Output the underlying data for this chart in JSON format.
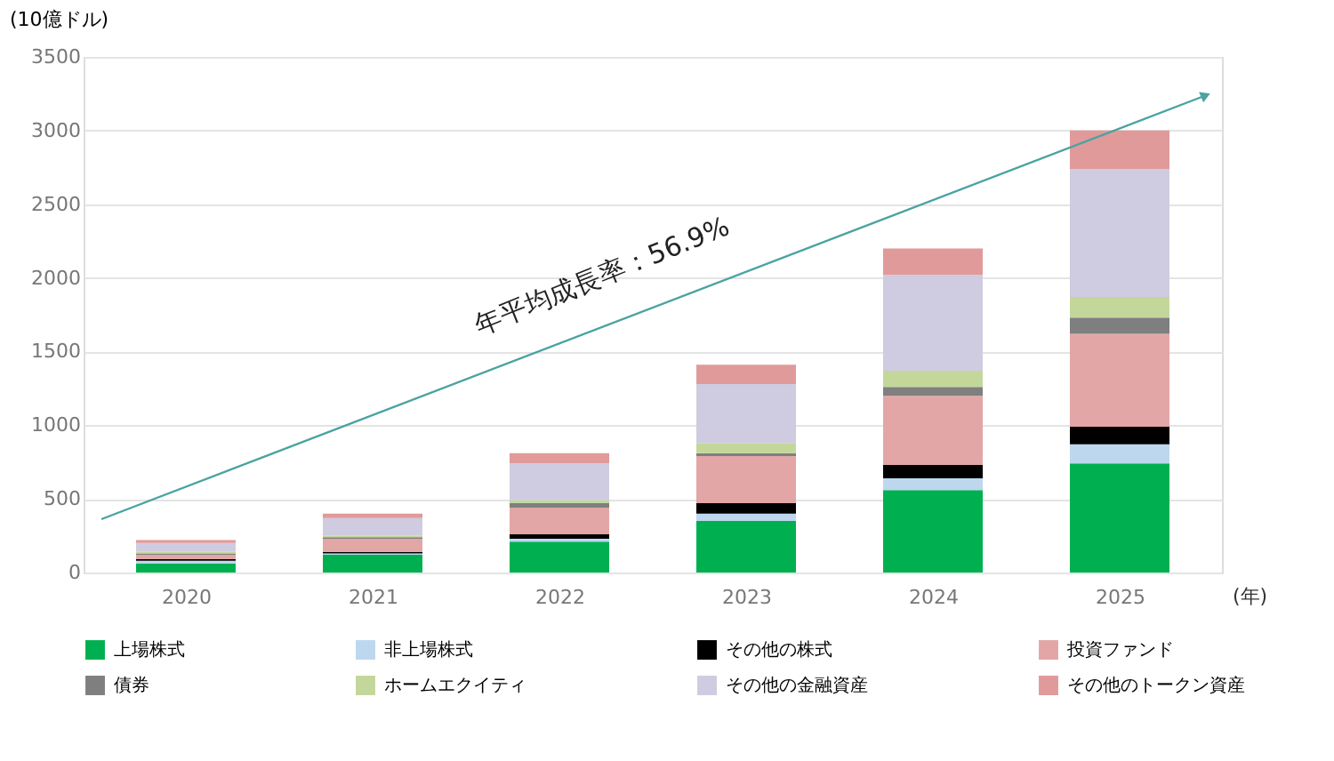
{
  "chart_data": {
    "type": "bar",
    "stacked": true,
    "xlabel": "(年)",
    "ylabel": "(10億ドル)",
    "categories": [
      "2020",
      "2021",
      "2022",
      "2023",
      "2024",
      "2025"
    ],
    "series": [
      {
        "name": "上場株式",
        "color": "#00b050",
        "values": [
          60,
          120,
          210,
          350,
          560,
          740
        ]
      },
      {
        "name": "非上場株式",
        "color": "#bdd7ee",
        "values": [
          20,
          10,
          20,
          50,
          80,
          130
        ]
      },
      {
        "name": "その他の株式",
        "color": "#000000",
        "values": [
          10,
          10,
          30,
          70,
          90,
          120
        ]
      },
      {
        "name": "投資ファンド",
        "color": "#e3a6a6",
        "values": [
          30,
          90,
          180,
          320,
          470,
          630
        ]
      },
      {
        "name": "債券",
        "color": "#7f7f7f",
        "values": [
          10,
          10,
          30,
          20,
          60,
          110
        ]
      },
      {
        "name": "ホームエクイティ",
        "color": "#c4d79b",
        "values": [
          10,
          10,
          20,
          70,
          110,
          140
        ]
      },
      {
        "name": "その他の金融資産",
        "color": "#cfcbe0",
        "values": [
          60,
          120,
          250,
          400,
          650,
          870
        ]
      },
      {
        "name": "その他のトークン資産",
        "color": "#e09a9a",
        "values": [
          20,
          30,
          70,
          130,
          180,
          260
        ]
      }
    ],
    "ylim": [
      0,
      3500
    ],
    "yticks": [
      0,
      500,
      1000,
      1500,
      2000,
      2500,
      3000,
      3500
    ],
    "grid": "y",
    "legend": "bottom",
    "annotations": [
      "年平均成長率：56.9%"
    ]
  }
}
